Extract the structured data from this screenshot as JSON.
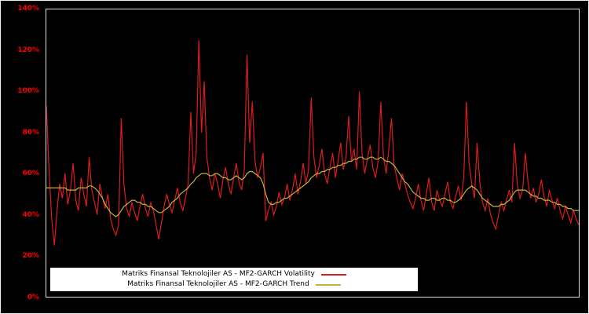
{
  "chart_data": {
    "type": "line",
    "title": "",
    "xlabel": "",
    "ylabel": "",
    "ylim": [
      0,
      140
    ],
    "yticks": [
      "0%",
      "20%",
      "40%",
      "60%",
      "80%",
      "100%",
      "120%",
      "140%"
    ],
    "grid": false,
    "legend_position": "bottom-left-inside",
    "background_color": "#000000",
    "axis_label_color": "#ff0000",
    "frame_color": "#e0e0e0",
    "series": [
      {
        "name": "Matriks Finansal Teknolojiler AS - MF2-GARCH Volatility",
        "color": "#dd1c1c",
        "values": [
          93,
          62,
          38,
          25,
          42,
          55,
          48,
          60,
          45,
          52,
          65,
          47,
          42,
          58,
          50,
          44,
          68,
          52,
          46,
          40,
          55,
          48,
          43,
          50,
          38,
          33,
          30,
          35,
          87,
          55,
          43,
          39,
          46,
          41,
          37,
          44,
          50,
          43,
          39,
          46,
          42,
          35,
          28,
          36,
          44,
          50,
          45,
          41,
          47,
          53,
          46,
          42,
          48,
          55,
          90,
          60,
          70,
          125,
          80,
          105,
          68,
          58,
          52,
          60,
          55,
          48,
          57,
          63,
          55,
          50,
          58,
          65,
          56,
          52,
          62,
          118,
          75,
          95,
          66,
          58,
          63,
          70,
          37,
          42,
          46,
          40,
          44,
          51,
          45,
          48,
          55,
          47,
          52,
          60,
          50,
          56,
          65,
          55,
          62,
          97,
          68,
          58,
          64,
          72,
          60,
          55,
          63,
          70,
          58,
          66,
          75,
          62,
          68,
          88,
          66,
          72,
          62,
          100,
          70,
          60,
          67,
          74,
          63,
          58,
          66,
          95,
          68,
          60,
          72,
          87,
          64,
          58,
          52,
          60,
          55,
          50,
          46,
          43,
          48,
          55,
          47,
          42,
          50,
          58,
          46,
          42,
          52,
          47,
          44,
          50,
          56,
          46,
          43,
          49,
          54,
          47,
          58,
          95,
          65,
          55,
          48,
          75,
          56,
          46,
          42,
          48,
          40,
          36,
          33,
          40,
          46,
          42,
          47,
          52,
          46,
          75,
          55,
          48,
          52,
          70,
          56,
          48,
          53,
          46,
          50,
          57,
          49,
          44,
          52,
          47,
          43,
          48,
          42,
          38,
          44,
          40,
          36,
          42,
          38,
          35
        ]
      },
      {
        "name": "Matriks Finansal Teknolojiler AS - MF2-GARCH Trend",
        "color": "#c2b23c",
        "values": [
          53,
          53,
          53,
          53,
          53,
          53,
          53,
          53,
          52,
          52,
          52,
          52,
          53,
          53,
          53,
          53,
          54,
          54,
          53,
          52,
          50,
          48,
          45,
          43,
          41,
          40,
          39,
          40,
          42,
          44,
          45,
          46,
          47,
          47,
          46,
          46,
          45,
          45,
          44,
          44,
          43,
          42,
          41,
          41,
          42,
          43,
          44,
          46,
          47,
          48,
          50,
          51,
          52,
          53,
          55,
          56,
          58,
          59,
          60,
          60,
          60,
          59,
          59,
          60,
          60,
          59,
          58,
          58,
          57,
          57,
          58,
          59,
          58,
          57,
          58,
          60,
          61,
          61,
          60,
          59,
          58,
          55,
          50,
          46,
          45,
          45,
          46,
          46,
          47,
          48,
          48,
          49,
          50,
          51,
          52,
          53,
          54,
          55,
          56,
          58,
          59,
          60,
          60,
          61,
          61,
          62,
          62,
          63,
          63,
          64,
          64,
          65,
          65,
          66,
          66,
          67,
          67,
          68,
          68,
          67,
          67,
          68,
          68,
          67,
          67,
          68,
          67,
          66,
          66,
          65,
          64,
          62,
          60,
          58,
          56,
          55,
          53,
          51,
          50,
          49,
          48,
          48,
          47,
          47,
          48,
          48,
          47,
          47,
          48,
          48,
          47,
          47,
          46,
          46,
          47,
          48,
          50,
          52,
          53,
          54,
          53,
          52,
          50,
          48,
          47,
          46,
          45,
          44,
          44,
          44,
          45,
          45,
          46,
          47,
          49,
          51,
          52,
          52,
          52,
          52,
          51,
          50,
          49,
          49,
          48,
          48,
          47,
          47,
          47,
          46,
          46,
          45,
          45,
          44,
          44,
          43,
          43,
          42,
          42,
          42
        ]
      }
    ]
  }
}
